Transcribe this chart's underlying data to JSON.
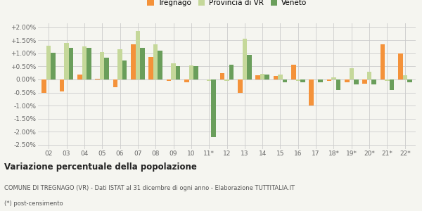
{
  "years": [
    "02",
    "03",
    "04",
    "05",
    "06",
    "07",
    "08",
    "09",
    "10",
    "11*",
    "12",
    "13",
    "14",
    "15",
    "16",
    "17",
    "18*",
    "19*",
    "20*",
    "21*",
    "22*"
  ],
  "tregnago": [
    -0.5,
    -0.45,
    0.2,
    0.02,
    -0.3,
    1.35,
    0.85,
    -0.05,
    -0.1,
    0.0,
    0.25,
    -0.5,
    0.15,
    0.13,
    0.57,
    -1.0,
    -0.05,
    -0.1,
    -0.15,
    1.35,
    1.0
  ],
  "provincia_vr": [
    1.3,
    1.4,
    1.25,
    1.05,
    1.15,
    1.85,
    1.35,
    0.62,
    0.55,
    -0.05,
    -0.05,
    1.57,
    0.22,
    0.2,
    -0.05,
    0.0,
    0.08,
    0.42,
    0.3,
    -0.05,
    0.15
  ],
  "veneto": [
    1.02,
    1.2,
    1.2,
    0.82,
    0.72,
    1.2,
    1.1,
    0.52,
    0.5,
    -2.2,
    0.56,
    0.95,
    0.18,
    -0.1,
    -0.1,
    -0.1,
    -0.4,
    -0.2,
    -0.2,
    -0.4,
    -0.1
  ],
  "color_tregnago": "#f4923a",
  "color_provincia": "#c5d89a",
  "color_veneto": "#6a9e5b",
  "bg_color": "#f5f5f0",
  "grid_color": "#cccccc",
  "ylim": [
    -2.65,
    2.15
  ],
  "yticks": [
    -2.5,
    -2.0,
    -1.5,
    -1.0,
    -0.5,
    0.0,
    0.5,
    1.0,
    1.5,
    2.0
  ],
  "title_main": "Variazione percentuale della popolazione",
  "title_sub1": "COMUNE DI TREGNAGO (VR) - Dati ISTAT al 31 dicembre di ogni anno - Elaborazione TUTTITALIA.IT",
  "title_sub2": "(*) post-censimento",
  "legend_labels": [
    "Tregnago",
    "Provincia di VR",
    "Veneto"
  ]
}
